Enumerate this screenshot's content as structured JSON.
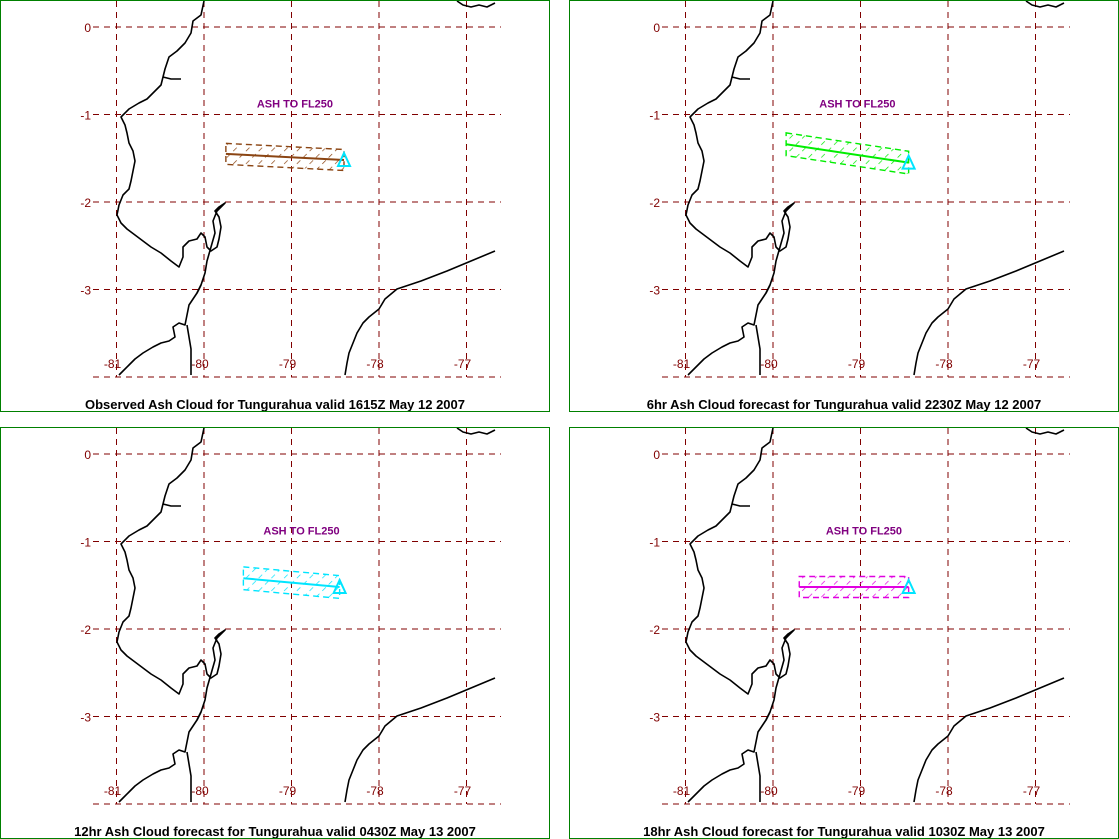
{
  "colors": {
    "panel_border": "#008000",
    "grid": "#800000",
    "coast": "#000000",
    "ash_label": "#800080",
    "vent": "#00e5ff"
  },
  "axes": {
    "x_ticks": [
      "-81",
      "-80",
      "-79",
      "-78",
      "-77"
    ],
    "y_ticks": [
      "0",
      "-1",
      "-2",
      "-3"
    ]
  },
  "panels": [
    {
      "caption": "Observed Ash Cloud for Tungurahua valid 1615Z May 12 2007",
      "ash_label": "ASH TO FL250",
      "cloud_color": "#8b4513",
      "cloud": {
        "west": [
          -79.75,
          -1.45
        ],
        "east": [
          -78.4,
          -1.52
        ],
        "half_width_deg": 0.12
      }
    },
    {
      "caption": "6hr Ash Cloud forecast for Tungurahua valid 2230Z May 12 2007",
      "ash_label": "ASH TO FL250",
      "cloud_color": "#00ee00",
      "cloud": {
        "west": [
          -79.85,
          -1.34
        ],
        "east": [
          -78.45,
          -1.55
        ],
        "half_width_deg": 0.13
      }
    },
    {
      "caption": "12hr Ash Cloud forecast for Tungurahua valid 0430Z May 13 2007",
      "ash_label": "ASH TO FL250",
      "cloud_color": "#00e5ff",
      "cloud": {
        "west": [
          -79.55,
          -1.42
        ],
        "east": [
          -78.45,
          -1.52
        ],
        "half_width_deg": 0.13
      }
    },
    {
      "caption": "18hr Ash Cloud forecast for Tungurahua valid 1030Z May 13 2007",
      "ash_label": "ASH TO FL250",
      "cloud_color": "#e000e0",
      "cloud": {
        "west": [
          -79.7,
          -1.52
        ],
        "east": [
          -78.45,
          -1.52
        ],
        "half_width_deg": 0.12
      }
    }
  ]
}
